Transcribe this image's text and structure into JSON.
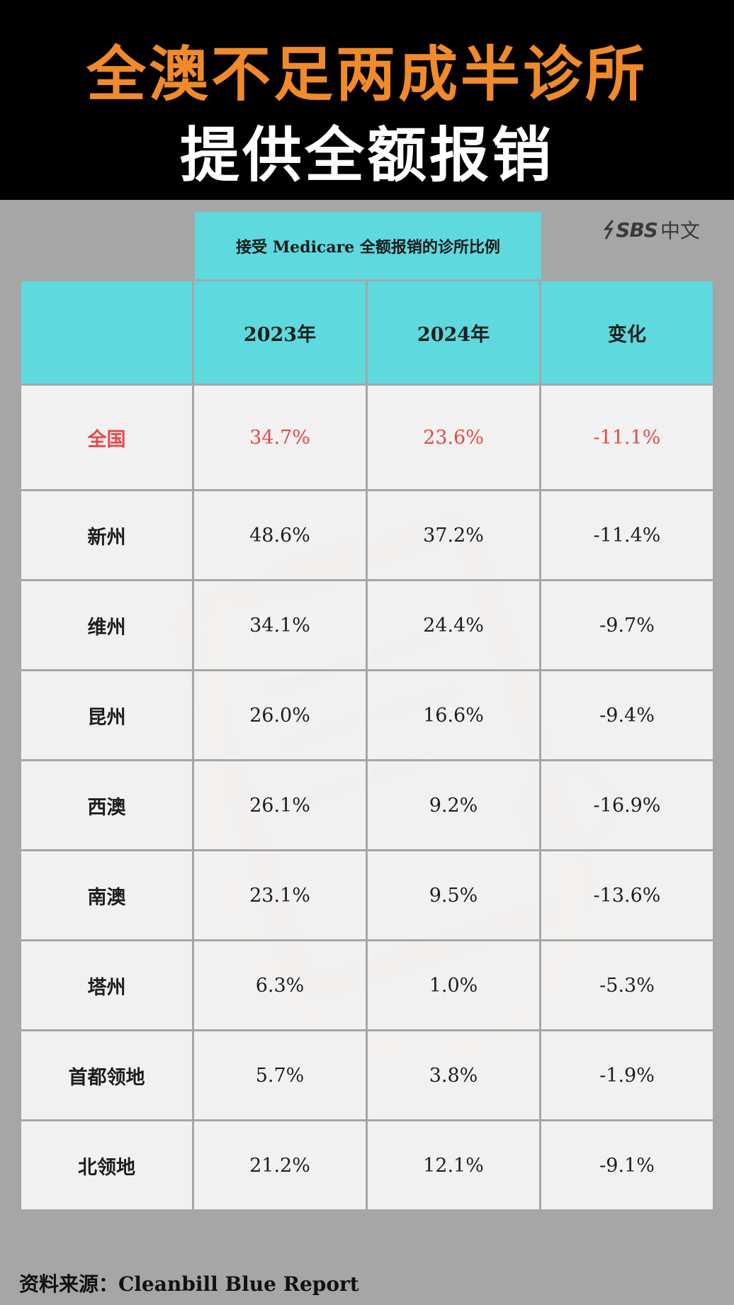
{
  "header": {
    "title_line1": "全澳不足两成半诊所",
    "title_line2": "提供全额报销"
  },
  "logo": {
    "brand": "SBS",
    "suffix": "中文"
  },
  "caption": "接受 Medicare 全额报销的诊所比例",
  "chart_data": {
    "type": "table",
    "columns": [
      "",
      "2023年",
      "2024年",
      "变化"
    ],
    "rows": [
      {
        "region": "全国",
        "y2023": "34.7%",
        "y2024": "23.6%",
        "change": "-11.1%",
        "highlight": true
      },
      {
        "region": "新州",
        "y2023": "48.6%",
        "y2024": "37.2%",
        "change": "-11.4%"
      },
      {
        "region": "维州",
        "y2023": "34.1%",
        "y2024": "24.4%",
        "change": "-9.7%"
      },
      {
        "region": "昆州",
        "y2023": "26.0%",
        "y2024": "16.6%",
        "change": "-9.4%"
      },
      {
        "region": "西澳",
        "y2023": "26.1%",
        "y2024": "9.2%",
        "change": "-16.9%"
      },
      {
        "region": "南澳",
        "y2023": "23.1%",
        "y2024": "9.5%",
        "change": "-13.6%"
      },
      {
        "region": "塔州",
        "y2023": "6.3%",
        "y2024": "1.0%",
        "change": "-5.3%"
      },
      {
        "region": "首都领地",
        "y2023": "5.7%",
        "y2024": "3.8%",
        "change": "-1.9%"
      },
      {
        "region": "北领地",
        "y2023": "21.2%",
        "y2024": "12.1%",
        "change": "-9.1%"
      }
    ]
  },
  "source": "资料来源：Cleanbill Blue Report",
  "colors": {
    "header_bg": "#000000",
    "title_orange": "#f08a2a",
    "accent_cyan": "#5ed9de",
    "highlight_red": "#e84848",
    "page_bg": "#a6a6a6"
  },
  "icons": [
    "sbs-logo-icon",
    "clipboard-stethoscope-watermark-icon"
  ]
}
